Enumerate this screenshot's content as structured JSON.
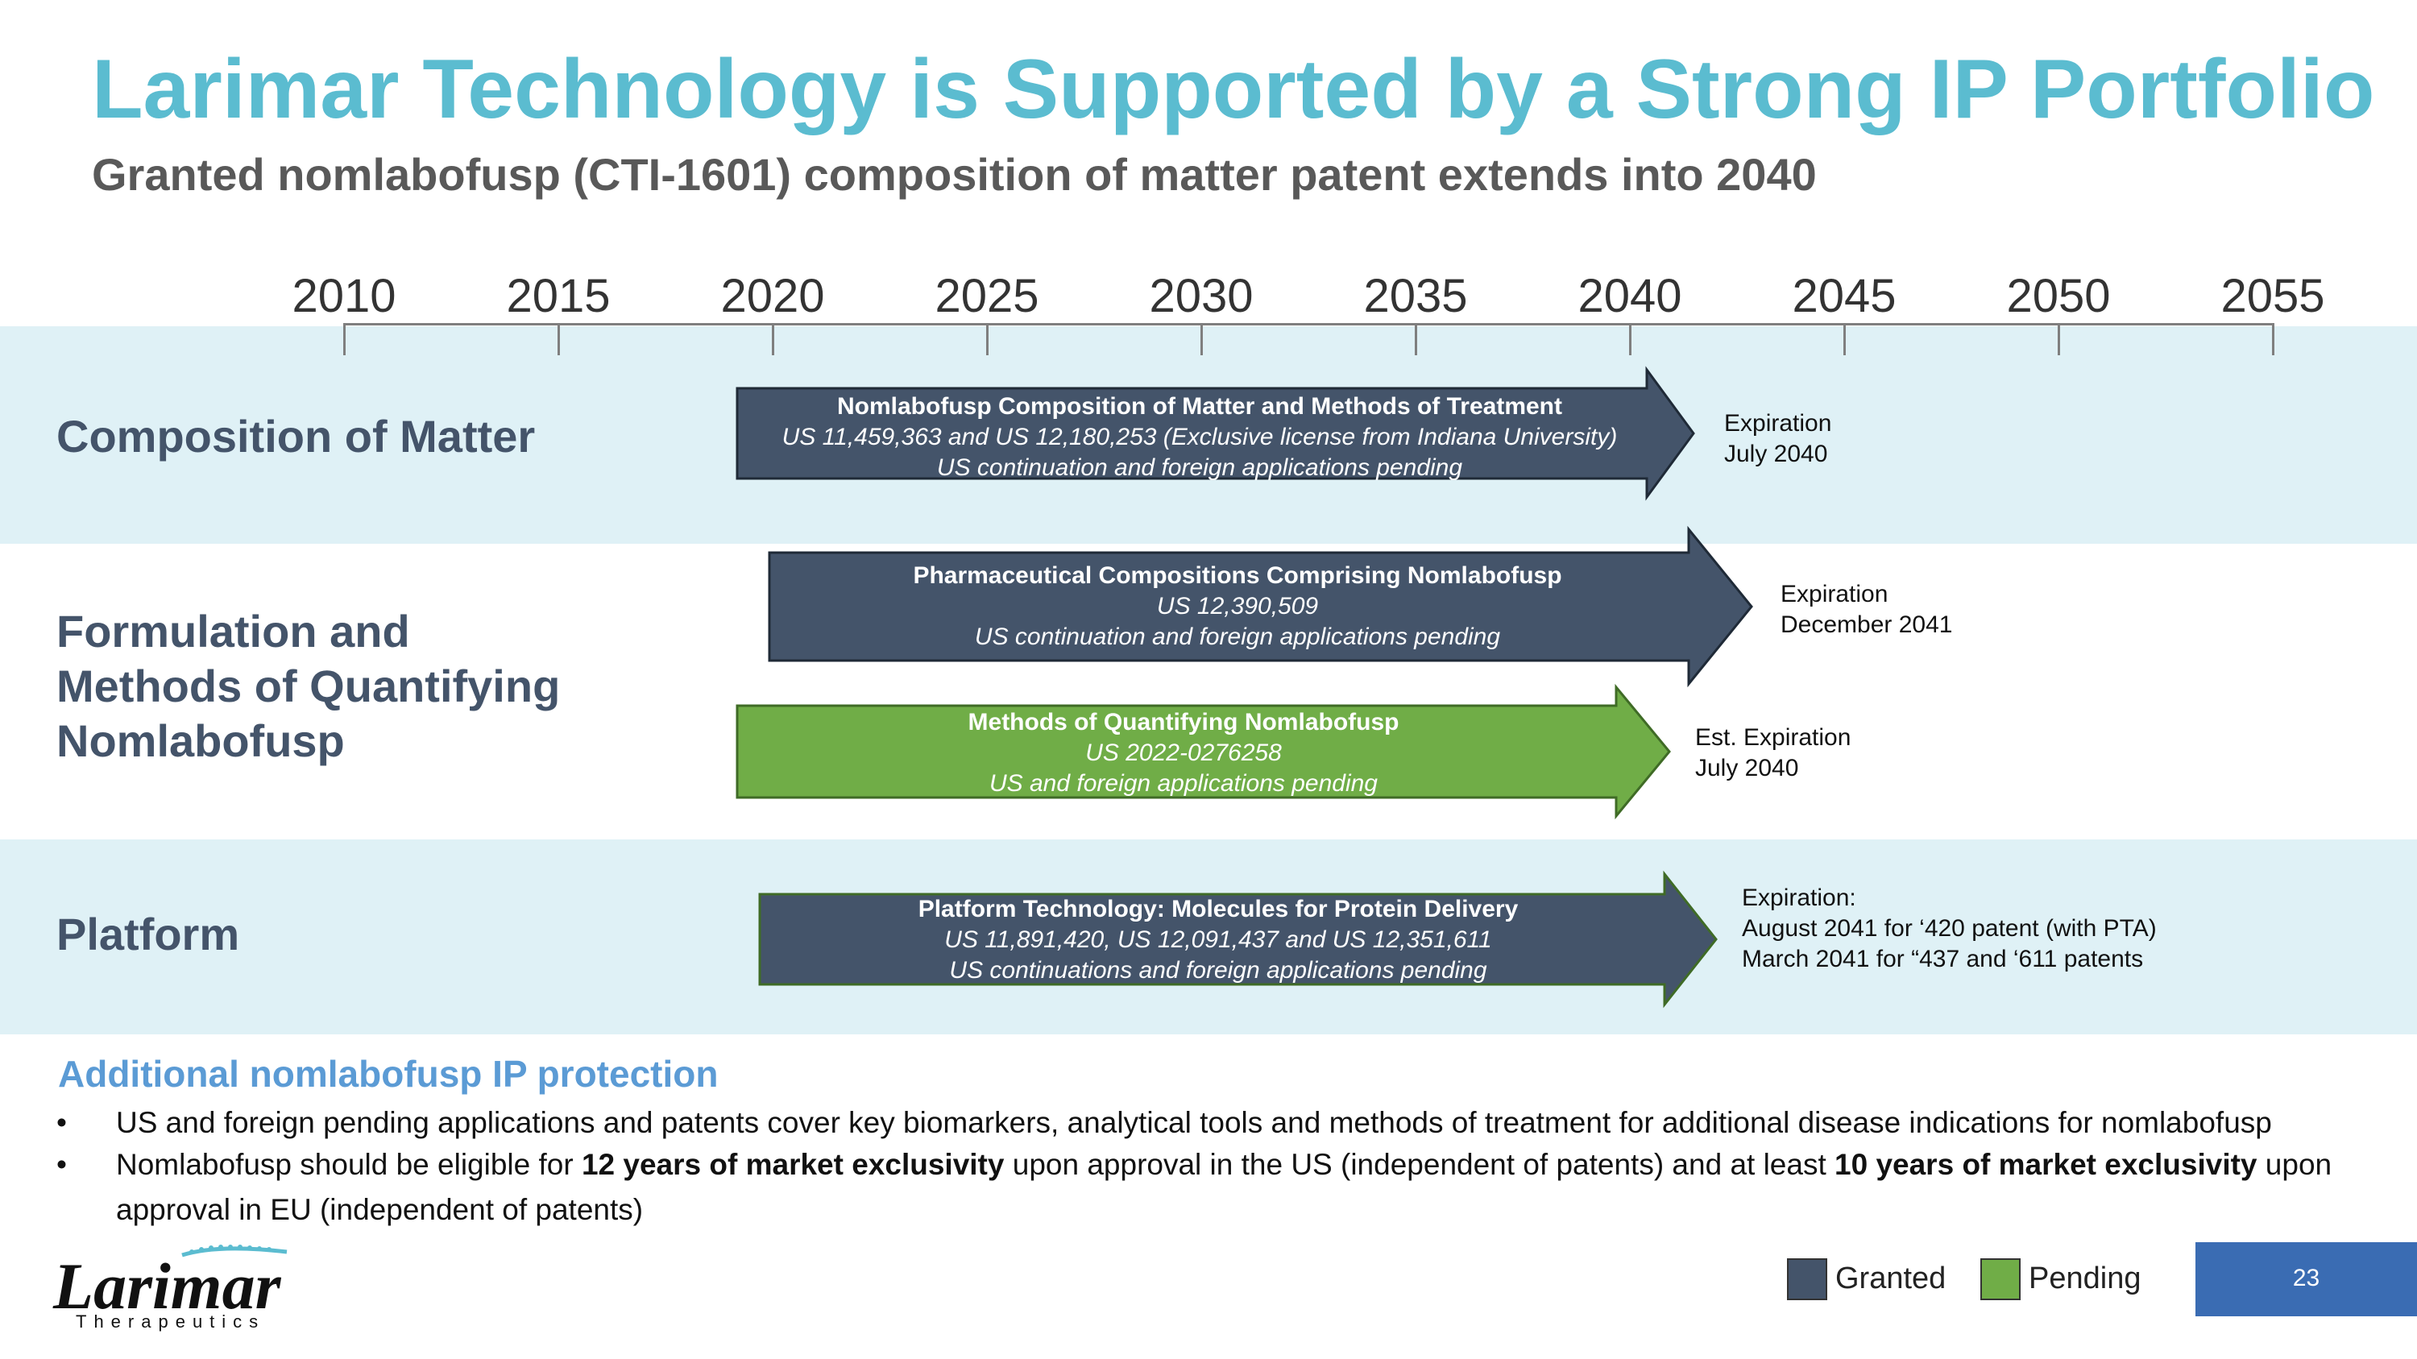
{
  "slide": {
    "title": "Larimar Technology is Supported by a Strong IP Portfolio",
    "subtitle": "Granted nomlabofusp (CTI-1601) composition of matter patent extends into 2040",
    "page_number": "23"
  },
  "timeline": {
    "years": [
      "2010",
      "2015",
      "2020",
      "2025",
      "2030",
      "2035",
      "2040",
      "2045",
      "2050",
      "2055"
    ]
  },
  "categories": {
    "composition": "Composition of Matter",
    "formulation_line1": "Formulation and",
    "formulation_line2": "Methods of Quantifying",
    "formulation_line3": "Nomlabofusp",
    "platform": "Platform"
  },
  "arrows": [
    {
      "status": "granted",
      "heading": "Nomlabofusp Composition of Matter and Methods of Treatment",
      "line2": "US 11,459,363 and US 12,180,253 (Exclusive license from Indiana University)",
      "line3": "US continuation and foreign applications pending",
      "exp_line1": "Expiration",
      "exp_line2": "July 2040"
    },
    {
      "status": "granted",
      "heading": "Pharmaceutical Compositions Comprising Nomlabofusp",
      "line2": "US 12,390,509",
      "line3": "US continuation and foreign applications pending",
      "exp_line1": "Expiration",
      "exp_line2": "December 2041"
    },
    {
      "status": "pending",
      "heading": "Methods of Quantifying Nomlabofusp",
      "line2": "US 2022-0276258",
      "line3": "US and foreign applications pending",
      "exp_line1": "Est. Expiration",
      "exp_line2": "July 2040"
    },
    {
      "status": "granted",
      "heading": "Platform Technology: Molecules for Protein Delivery",
      "line2": "US 11,891,420, US 12,091,437 and US 12,351,611",
      "line3": "US continuations and foreign applications pending",
      "exp_line1": "Expiration:",
      "exp_line2": "August 2041  for ‘420 patent (with PTA)",
      "exp_line3": "March 2041 for “437 and ‘611 patents"
    }
  ],
  "additional": {
    "title": "Additional nomlabofusp IP protection",
    "bullet_symbol": "•",
    "bullet1": "US and foreign pending applications and patents cover key biomarkers, analytical tools and methods of treatment for additional disease indications for nomlabofusp",
    "bullet2_a": "Nomlabofusp should be eligible for ",
    "bullet2_b": "12 years of market exclusivity",
    "bullet2_c": " upon approval in the US (independent of patents) and at least ",
    "bullet2_d": "10 years of market exclusivity",
    "bullet2_e": " upon approval in EU (independent of patents)"
  },
  "legend": {
    "granted": "Granted",
    "pending": "Pending"
  },
  "logo": {
    "name": "Larimar",
    "tagline": "Therapeutics"
  },
  "colors": {
    "title": "#5bbcd0",
    "granted": "#44546a",
    "pending": "#70ad47",
    "band": "#dff1f6",
    "section_heading": "#5b9bd5",
    "page_box": "#3a6cb3"
  }
}
